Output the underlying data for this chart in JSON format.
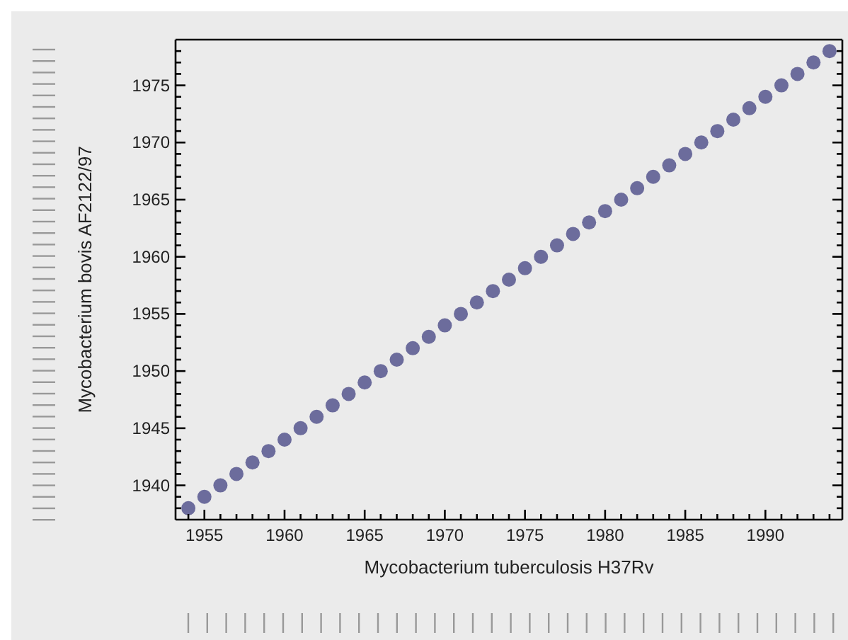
{
  "chart_data": {
    "type": "scatter",
    "xlabel": "Mycobacterium tuberculosis H37Rv",
    "ylabel": "Mycobacterium bovis AF2122/97",
    "x": [
      1954,
      1955,
      1956,
      1957,
      1958,
      1959,
      1960,
      1961,
      1962,
      1963,
      1964,
      1965,
      1966,
      1967,
      1968,
      1969,
      1970,
      1971,
      1972,
      1973,
      1974,
      1975,
      1976,
      1977,
      1978,
      1979,
      1980,
      1981,
      1982,
      1983,
      1984,
      1985,
      1986,
      1987,
      1988,
      1989,
      1990,
      1991,
      1992,
      1993,
      1994
    ],
    "series": [
      {
        "color": "#6c6c9c",
        "values": [
          1938,
          1939,
          1940,
          1941,
          1942,
          1943,
          1944,
          1945,
          1946,
          1947,
          1948,
          1949,
          1950,
          1951,
          1952,
          1953,
          1954,
          1955,
          1956,
          1957,
          1958,
          1959,
          1960,
          1961,
          1962,
          1963,
          1964,
          1965,
          1966,
          1967,
          1968,
          1969,
          1970,
          1971,
          1972,
          1973,
          1974,
          1975,
          1976,
          1977,
          1978
        ]
      }
    ],
    "xlim": [
      1953.2,
      1994.8
    ],
    "ylim": [
      1937,
      1979
    ],
    "xticks": [
      {
        "value": 1954,
        "label": null
      },
      1955,
      {
        "value": 1956,
        "label": null
      },
      {
        "value": 1957,
        "label": null
      },
      {
        "value": 1958,
        "label": null
      },
      {
        "value": 1959,
        "label": null
      },
      1960,
      {
        "value": 1961,
        "label": null
      },
      {
        "value": 1962,
        "label": null
      },
      {
        "value": 1963,
        "label": null
      },
      {
        "value": 1964,
        "label": null
      },
      1965,
      {
        "value": 1966,
        "label": null
      },
      {
        "value": 1967,
        "label": null
      },
      {
        "value": 1968,
        "label": null
      },
      {
        "value": 1969,
        "label": null
      },
      1970,
      {
        "value": 1971,
        "label": null
      },
      {
        "value": 1972,
        "label": null
      },
      {
        "value": 1973,
        "label": null
      },
      {
        "value": 1974,
        "label": null
      },
      1975,
      {
        "value": 1976,
        "label": null
      },
      {
        "value": 1977,
        "label": null
      },
      {
        "value": 1978,
        "label": null
      },
      {
        "value": 1979,
        "label": null
      },
      1980,
      {
        "value": 1981,
        "label": null
      },
      {
        "value": 1982,
        "label": null
      },
      {
        "value": 1983,
        "label": null
      },
      {
        "value": 1984,
        "label": null
      },
      1985,
      {
        "value": 1986,
        "label": null
      },
      {
        "value": 1987,
        "label": null
      },
      {
        "value": 1988,
        "label": null
      },
      {
        "value": 1989,
        "label": null
      },
      1990,
      {
        "value": 1991,
        "label": null
      },
      {
        "value": 1992,
        "label": null
      },
      {
        "value": 1993,
        "label": null
      },
      {
        "value": 1994,
        "label": null
      }
    ],
    "yticks": [
      {
        "value": 1938,
        "label": null
      },
      {
        "value": 1939,
        "label": null
      },
      1940,
      {
        "value": 1941,
        "label": null
      },
      {
        "value": 1942,
        "label": null
      },
      {
        "value": 1943,
        "label": null
      },
      {
        "value": 1944,
        "label": null
      },
      1945,
      {
        "value": 1946,
        "label": null
      },
      {
        "value": 1947,
        "label": null
      },
      {
        "value": 1948,
        "label": null
      },
      {
        "value": 1949,
        "label": null
      },
      1950,
      {
        "value": 1951,
        "label": null
      },
      {
        "value": 1952,
        "label": null
      },
      {
        "value": 1953,
        "label": null
      },
      {
        "value": 1954,
        "label": null
      },
      1955,
      {
        "value": 1956,
        "label": null
      },
      {
        "value": 1957,
        "label": null
      },
      {
        "value": 1958,
        "label": null
      },
      {
        "value": 1959,
        "label": null
      },
      1960,
      {
        "value": 1961,
        "label": null
      },
      {
        "value": 1962,
        "label": null
      },
      {
        "value": 1963,
        "label": null
      },
      {
        "value": 1964,
        "label": null
      },
      1965,
      {
        "value": 1966,
        "label": null
      },
      {
        "value": 1967,
        "label": null
      },
      {
        "value": 1968,
        "label": null
      },
      {
        "value": 1969,
        "label": null
      },
      1970,
      {
        "value": 1971,
        "label": null
      },
      {
        "value": 1972,
        "label": null
      },
      {
        "value": 1973,
        "label": null
      },
      {
        "value": 1974,
        "label": null
      },
      1975,
      {
        "value": 1976,
        "label": null
      },
      {
        "value": 1977,
        "label": null
      },
      {
        "value": 1978,
        "label": null
      }
    ],
    "grid": false,
    "legend": false,
    "marker": "circle"
  }
}
